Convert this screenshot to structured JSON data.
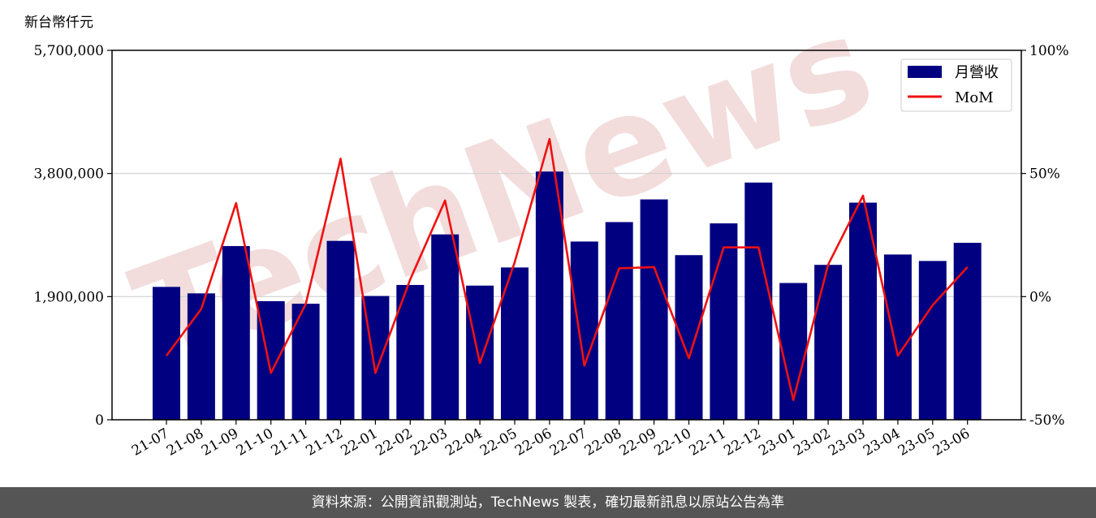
{
  "chart_data": {
    "type": "bar",
    "unit_label": "新台幣仟元",
    "categories": [
      "21-07",
      "21-08",
      "21-09",
      "21-10",
      "21-11",
      "21-12",
      "22-01",
      "22-02",
      "22-03",
      "22-04",
      "22-05",
      "22-06",
      "22-07",
      "22-08",
      "22-09",
      "22-10",
      "22-11",
      "22-12",
      "23-01",
      "23-02",
      "23-03",
      "23-04",
      "23-05",
      "23-06"
    ],
    "series": [
      {
        "name": "月營收",
        "type": "bar",
        "axis": "left",
        "color": "#000080",
        "values": [
          2050000,
          1950000,
          2680000,
          1830000,
          1790000,
          2760000,
          1910000,
          2080000,
          2860000,
          2070000,
          2350000,
          3830000,
          2750000,
          3050000,
          3400000,
          2540000,
          3030000,
          3660000,
          2110000,
          2390000,
          3350000,
          2550000,
          2450000,
          2730000
        ]
      },
      {
        "name": "MoM",
        "type": "line",
        "axis": "right",
        "color": "#ee1111",
        "values": [
          -24,
          -5,
          38,
          -31,
          -3,
          56,
          -31,
          7,
          39,
          -27,
          14,
          64,
          -28,
          11.5,
          12,
          -25,
          20,
          20,
          -42,
          13,
          41,
          -24,
          -3.5,
          12
        ]
      }
    ],
    "y_left": {
      "min": 0,
      "max": 5700000,
      "ticks": [
        "0",
        "1,900,000",
        "3,800,000",
        "5,700,000"
      ]
    },
    "y_right": {
      "min": -50,
      "max": 100,
      "ticks": [
        "-50%",
        "0%",
        "50%",
        "100%"
      ]
    },
    "grid": "horizontal",
    "legend_position": "top-right"
  },
  "watermark": "TechNews",
  "footer": "資料來源：公開資訊觀測站，TechNews 製表，確切最新訊息以原站公告為準"
}
